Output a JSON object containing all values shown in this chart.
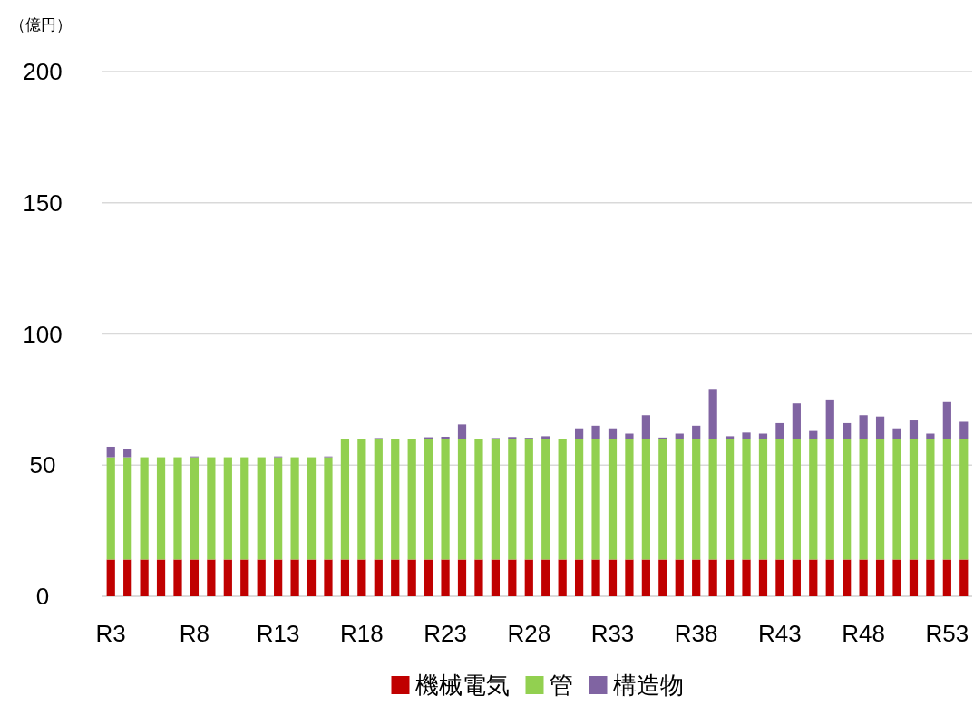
{
  "chart_data": {
    "type": "bar",
    "stacked": true,
    "ylabel": "（億円）",
    "categories": [
      "R3",
      null,
      null,
      null,
      null,
      "R8",
      null,
      null,
      null,
      null,
      "R13",
      null,
      null,
      null,
      null,
      "R18",
      null,
      null,
      null,
      null,
      "R23",
      null,
      null,
      null,
      null,
      "R28",
      null,
      null,
      null,
      null,
      "R33",
      null,
      null,
      null,
      null,
      "R38",
      null,
      null,
      null,
      null,
      "R43",
      null,
      null,
      null,
      null,
      "R48",
      null,
      null,
      null,
      null,
      "R53",
      null
    ],
    "series": [
      {
        "name": "機械電気",
        "color": "#c00000",
        "values": [
          14,
          14,
          14,
          14,
          14,
          14,
          14,
          14,
          14,
          14,
          14,
          14,
          14,
          14,
          14,
          14,
          14,
          14,
          14,
          14,
          14,
          14,
          14,
          14,
          14,
          14,
          14,
          14,
          14,
          14,
          14,
          14,
          14,
          14,
          14,
          14,
          14,
          14,
          14,
          14,
          14,
          14,
          14,
          14,
          14,
          14,
          14,
          14,
          14,
          14,
          14,
          14
        ]
      },
      {
        "name": "管",
        "color": "#92d050",
        "values": [
          39,
          39,
          39,
          39,
          39,
          39,
          39,
          39,
          39,
          39,
          39,
          39,
          39,
          39,
          46,
          46,
          46,
          46,
          46,
          46,
          46,
          46,
          46,
          46,
          46,
          46,
          46,
          46,
          46,
          46,
          46,
          46,
          46,
          46,
          46,
          46,
          46,
          46,
          46,
          46,
          46,
          46,
          46,
          46,
          46,
          46,
          46,
          46,
          46,
          46,
          46,
          46
        ]
      },
      {
        "name": "構造物",
        "color": "#8064a2",
        "values": [
          4,
          3,
          0,
          0,
          0,
          0.3,
          0,
          0,
          0,
          0,
          0.3,
          0,
          0,
          0.3,
          0,
          0,
          0.3,
          0,
          0,
          0.6,
          0.8,
          5.5,
          0,
          0.3,
          0.7,
          0.4,
          1,
          0,
          4,
          5,
          4,
          2,
          9,
          0.5,
          2,
          5,
          19,
          1,
          2.4,
          2,
          6,
          13.5,
          3,
          15,
          6,
          9,
          8.5,
          4,
          7,
          2,
          14,
          6.5
        ]
      }
    ],
    "ylim": [
      0,
      200
    ],
    "yticks": [
      0,
      50,
      100,
      150,
      200
    ],
    "grid": "y",
    "legend": "bottom"
  }
}
